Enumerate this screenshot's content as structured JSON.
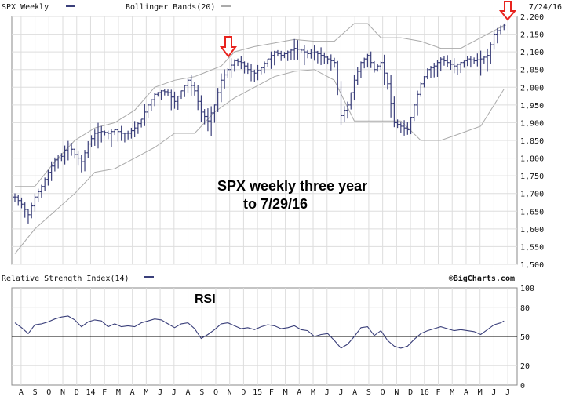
{
  "chart_data": [
    {
      "type": "ohlc",
      "legend": [
        {
          "label": "SPX Weekly",
          "color": "#3a3f7a"
        },
        {
          "label": "Bollinger Bands(20)",
          "color": "#aaaaaa"
        }
      ],
      "date_label": "7/24/16",
      "annotation": [
        "SPX weekly three year",
        "to 7/29/16"
      ],
      "ylim": [
        1500,
        2200
      ],
      "y_ticks": [
        "1,500",
        "1,550",
        "1,600",
        "1,650",
        "1,700",
        "1,750",
        "1,800",
        "1,850",
        "1,900",
        "1,950",
        "2,000",
        "2,050",
        "2,100",
        "2,150",
        "2,200"
      ],
      "x_tick_labels": [
        "A",
        "S",
        "O",
        "N",
        "D",
        "14",
        "F",
        "M",
        "A",
        "M",
        "J",
        "J",
        "A",
        "S",
        "O",
        "N",
        "D",
        "15",
        "F",
        "M",
        "A",
        "M",
        "J",
        "J",
        "A",
        "S",
        "O",
        "N",
        "D",
        "16",
        "F",
        "M",
        "A",
        "M",
        "J",
        "J"
      ],
      "price_colour": "#3a3f7a",
      "band_colour": "#aaaaaa",
      "arrow_colour": "#e8231e",
      "close_points": [
        [
          0,
          1690
        ],
        [
          2,
          1670
        ],
        [
          4,
          1640
        ],
        [
          6,
          1690
        ],
        [
          8,
          1720
        ],
        [
          10,
          1760
        ],
        [
          12,
          1795
        ],
        [
          14,
          1805
        ],
        [
          16,
          1840
        ],
        [
          18,
          1810
        ],
        [
          20,
          1790
        ],
        [
          22,
          1840
        ],
        [
          24,
          1870
        ],
        [
          26,
          1875
        ],
        [
          28,
          1870
        ],
        [
          30,
          1880
        ],
        [
          32,
          1870
        ],
        [
          34,
          1870
        ],
        [
          36,
          1885
        ],
        [
          38,
          1910
        ],
        [
          40,
          1950
        ],
        [
          42,
          1980
        ],
        [
          44,
          1990
        ],
        [
          46,
          1985
        ],
        [
          48,
          1960
        ],
        [
          50,
          1990
        ],
        [
          52,
          2020
        ],
        [
          54,
          1990
        ],
        [
          56,
          1930
        ],
        [
          58,
          1905
        ],
        [
          60,
          1950
        ],
        [
          62,
          2020
        ],
        [
          64,
          2050
        ],
        [
          66,
          2075
        ],
        [
          68,
          2070
        ],
        [
          70,
          2050
        ],
        [
          72,
          2040
        ],
        [
          74,
          2055
        ],
        [
          76,
          2080
        ],
        [
          78,
          2100
        ],
        [
          80,
          2090
        ],
        [
          82,
          2100
        ],
        [
          84,
          2110
        ],
        [
          86,
          2105
        ],
        [
          88,
          2095
        ],
        [
          90,
          2100
        ],
        [
          92,
          2090
        ],
        [
          94,
          2080
        ],
        [
          96,
          2070
        ],
        [
          98,
          1920
        ],
        [
          100,
          1950
        ],
        [
          102,
          2020
        ],
        [
          104,
          2070
        ],
        [
          106,
          2090
        ],
        [
          108,
          2050
        ],
        [
          110,
          2070
        ],
        [
          112,
          2010
        ],
        [
          114,
          1900
        ],
        [
          116,
          1890
        ],
        [
          118,
          1880
        ],
        [
          120,
          1950
        ],
        [
          122,
          2010
        ],
        [
          124,
          2050
        ],
        [
          126,
          2060
        ],
        [
          128,
          2080
        ],
        [
          130,
          2070
        ],
        [
          132,
          2060
        ],
        [
          134,
          2070
        ],
        [
          136,
          2080
        ],
        [
          138,
          2075
        ],
        [
          140,
          2080
        ],
        [
          142,
          2090
        ],
        [
          144,
          2150
        ],
        [
          146,
          2170
        ],
        [
          147,
          2175
        ]
      ],
      "upper_band_points": [
        [
          0,
          1720
        ],
        [
          6,
          1720
        ],
        [
          12,
          1790
        ],
        [
          18,
          1850
        ],
        [
          24,
          1885
        ],
        [
          30,
          1900
        ],
        [
          36,
          1935
        ],
        [
          42,
          2000
        ],
        [
          48,
          2020
        ],
        [
          54,
          2030
        ],
        [
          58,
          2045
        ],
        [
          62,
          2060
        ],
        [
          66,
          2100
        ],
        [
          72,
          2115
        ],
        [
          78,
          2125
        ],
        [
          84,
          2135
        ],
        [
          90,
          2130
        ],
        [
          96,
          2130
        ],
        [
          102,
          2180
        ],
        [
          106,
          2180
        ],
        [
          110,
          2140
        ],
        [
          116,
          2140
        ],
        [
          122,
          2130
        ],
        [
          128,
          2110
        ],
        [
          134,
          2110
        ],
        [
          140,
          2140
        ],
        [
          147,
          2175
        ]
      ],
      "lower_band_points": [
        [
          0,
          1530
        ],
        [
          6,
          1600
        ],
        [
          12,
          1650
        ],
        [
          18,
          1700
        ],
        [
          24,
          1760
        ],
        [
          30,
          1770
        ],
        [
          36,
          1800
        ],
        [
          42,
          1830
        ],
        [
          48,
          1870
        ],
        [
          54,
          1870
        ],
        [
          60,
          1930
        ],
        [
          66,
          1970
        ],
        [
          72,
          2000
        ],
        [
          78,
          2030
        ],
        [
          84,
          2045
        ],
        [
          90,
          2050
        ],
        [
          96,
          2020
        ],
        [
          102,
          1905
        ],
        [
          110,
          1905
        ],
        [
          116,
          1905
        ],
        [
          122,
          1850
        ],
        [
          128,
          1850
        ],
        [
          134,
          1870
        ],
        [
          140,
          1890
        ],
        [
          144,
          1950
        ],
        [
          147,
          1995
        ]
      ]
    },
    {
      "type": "line",
      "legend": [
        {
          "label": "Relative Strength Index(14)",
          "color": "#3a3f7a"
        }
      ],
      "source_label": "©BigCharts.com",
      "annotation": "RSI",
      "ylim": [
        0,
        100
      ],
      "y_ticks": [
        "0",
        "20",
        "50",
        "80",
        "100"
      ],
      "reference_line": 50,
      "line_colour": "#3a3f7a",
      "points": [
        [
          0,
          64
        ],
        [
          2,
          59
        ],
        [
          4,
          53
        ],
        [
          6,
          62
        ],
        [
          8,
          63
        ],
        [
          10,
          65
        ],
        [
          12,
          68
        ],
        [
          14,
          70
        ],
        [
          16,
          71
        ],
        [
          18,
          67
        ],
        [
          20,
          60
        ],
        [
          22,
          65
        ],
        [
          24,
          67
        ],
        [
          26,
          66
        ],
        [
          28,
          60
        ],
        [
          30,
          63
        ],
        [
          32,
          60
        ],
        [
          34,
          61
        ],
        [
          36,
          60
        ],
        [
          38,
          64
        ],
        [
          40,
          66
        ],
        [
          42,
          68
        ],
        [
          44,
          67
        ],
        [
          46,
          63
        ],
        [
          48,
          59
        ],
        [
          50,
          63
        ],
        [
          52,
          64
        ],
        [
          54,
          58
        ],
        [
          56,
          48
        ],
        [
          58,
          52
        ],
        [
          60,
          57
        ],
        [
          62,
          63
        ],
        [
          64,
          64
        ],
        [
          66,
          61
        ],
        [
          68,
          58
        ],
        [
          70,
          59
        ],
        [
          72,
          57
        ],
        [
          74,
          60
        ],
        [
          76,
          62
        ],
        [
          78,
          61
        ],
        [
          80,
          58
        ],
        [
          82,
          59
        ],
        [
          84,
          61
        ],
        [
          86,
          57
        ],
        [
          88,
          56
        ],
        [
          90,
          50
        ],
        [
          92,
          52
        ],
        [
          94,
          53
        ],
        [
          96,
          46
        ],
        [
          98,
          38
        ],
        [
          100,
          42
        ],
        [
          102,
          50
        ],
        [
          104,
          59
        ],
        [
          106,
          60
        ],
        [
          108,
          51
        ],
        [
          110,
          56
        ],
        [
          112,
          46
        ],
        [
          114,
          40
        ],
        [
          116,
          38
        ],
        [
          118,
          40
        ],
        [
          120,
          47
        ],
        [
          122,
          53
        ],
        [
          124,
          56
        ],
        [
          126,
          58
        ],
        [
          128,
          60
        ],
        [
          130,
          58
        ],
        [
          132,
          56
        ],
        [
          134,
          57
        ],
        [
          136,
          56
        ],
        [
          138,
          55
        ],
        [
          140,
          52
        ],
        [
          142,
          57
        ],
        [
          144,
          62
        ],
        [
          146,
          64
        ],
        [
          147,
          66
        ]
      ]
    }
  ]
}
